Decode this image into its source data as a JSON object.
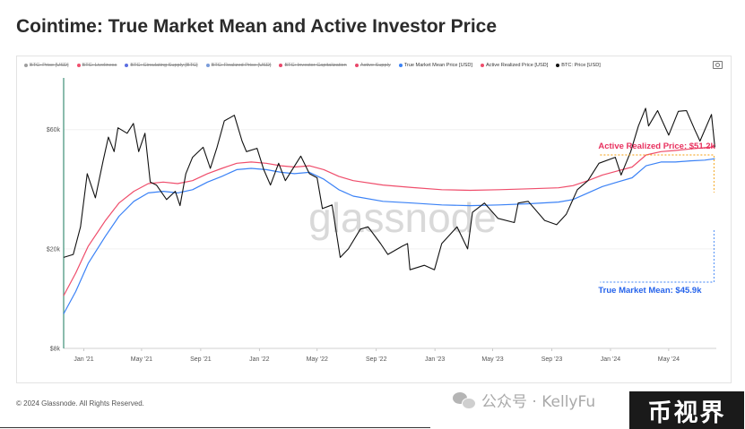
{
  "header": {
    "title": "Cointime: True Market Mean and Active Investor Price"
  },
  "legend": [
    {
      "label": "BTC: Price [USD]",
      "color": "#9e9e9e",
      "enabled": false
    },
    {
      "label": "BTC: Liveliness",
      "color": "#f0506e",
      "enabled": false
    },
    {
      "label": "BTC: Circulating Supply [BTC]",
      "color": "#5b6ee1",
      "enabled": false
    },
    {
      "label": "BTC: Realized Price [USD]",
      "color": "#7a9cd9",
      "enabled": false
    },
    {
      "label": "BTC: Investor Capitalization",
      "color": "#e8486a",
      "enabled": false
    },
    {
      "label": "Active Supply",
      "color": "#e8486a",
      "enabled": false
    },
    {
      "label": "True Market Mean Price [USD]",
      "color": "#3b82f6",
      "enabled": true
    },
    {
      "label": "Active Realized Price [USD]",
      "color": "#ef4d6b",
      "enabled": true
    },
    {
      "label": "BTC: Price [USD]",
      "color": "#111111",
      "enabled": true
    }
  ],
  "footer": {
    "copyright": "© 2024 Glassnode. All Rights Reserved."
  },
  "overlay": {
    "watermark": "glassnode",
    "wechat_text": "公众号 · KellyFu",
    "badge": "币视界"
  },
  "chart_data": {
    "type": "line",
    "title": "Cointime: True Market Mean and Active Investor Price",
    "y_scale": "log",
    "ylim": [
      8000,
      95000
    ],
    "y_ticks": [
      {
        "value": 8000,
        "label": "$8k"
      },
      {
        "value": 20000,
        "label": "$20k"
      },
      {
        "value": 60000,
        "label": "$60k"
      }
    ],
    "x_ticks": [
      "Jan '21",
      "May '21",
      "Sep '21",
      "Jan '22",
      "May '22",
      "Sep '22",
      "Jan '23",
      "May '23",
      "Sep '23",
      "Jan '24",
      "May '24"
    ],
    "x_tick_dates": [
      "2021-01-01",
      "2021-05-01",
      "2021-09-01",
      "2022-01-01",
      "2022-05-01",
      "2022-09-01",
      "2023-01-01",
      "2023-05-01",
      "2023-09-01",
      "2024-01-01",
      "2024-05-01"
    ],
    "xlim": [
      "2020-11-20",
      "2024-08-08"
    ],
    "series": [
      {
        "name": "BTC: Price [USD]",
        "color": "#111111",
        "points": [
          [
            "2020-11-20",
            18500
          ],
          [
            "2020-12-10",
            19000
          ],
          [
            "2020-12-25",
            24500
          ],
          [
            "2021-01-08",
            40000
          ],
          [
            "2021-01-25",
            32000
          ],
          [
            "2021-02-10",
            45000
          ],
          [
            "2021-02-21",
            56000
          ],
          [
            "2021-03-05",
            49000
          ],
          [
            "2021-03-13",
            61000
          ],
          [
            "2021-04-01",
            58000
          ],
          [
            "2021-04-14",
            63500
          ],
          [
            "2021-04-25",
            49000
          ],
          [
            "2021-05-08",
            58000
          ],
          [
            "2021-05-19",
            37000
          ],
          [
            "2021-06-01",
            36000
          ],
          [
            "2021-06-22",
            31500
          ],
          [
            "2021-07-10",
            34000
          ],
          [
            "2021-07-20",
            29800
          ],
          [
            "2021-08-01",
            40000
          ],
          [
            "2021-08-15",
            46500
          ],
          [
            "2021-09-06",
            51000
          ],
          [
            "2021-09-21",
            42000
          ],
          [
            "2021-10-05",
            51000
          ],
          [
            "2021-10-20",
            65000
          ],
          [
            "2021-11-10",
            68500
          ],
          [
            "2021-11-26",
            54000
          ],
          [
            "2021-12-05",
            49000
          ],
          [
            "2021-12-27",
            50500
          ],
          [
            "2022-01-10",
            41500
          ],
          [
            "2022-01-24",
            36000
          ],
          [
            "2022-02-10",
            44000
          ],
          [
            "2022-02-24",
            37500
          ],
          [
            "2022-03-28",
            47000
          ],
          [
            "2022-04-15",
            40000
          ],
          [
            "2022-05-01",
            38500
          ],
          [
            "2022-05-12",
            29000
          ],
          [
            "2022-06-01",
            30000
          ],
          [
            "2022-06-18",
            18500
          ],
          [
            "2022-07-05",
            20000
          ],
          [
            "2022-07-30",
            24000
          ],
          [
            "2022-08-15",
            24500
          ],
          [
            "2022-09-10",
            21000
          ],
          [
            "2022-09-25",
            19000
          ],
          [
            "2022-10-25",
            20500
          ],
          [
            "2022-11-05",
            21000
          ],
          [
            "2022-11-10",
            16500
          ],
          [
            "2022-12-10",
            17200
          ],
          [
            "2022-12-31",
            16500
          ],
          [
            "2023-01-15",
            21000
          ],
          [
            "2023-02-16",
            24500
          ],
          [
            "2023-03-10",
            20000
          ],
          [
            "2023-03-20",
            28000
          ],
          [
            "2023-04-14",
            30500
          ],
          [
            "2023-05-12",
            26500
          ],
          [
            "2023-06-15",
            25500
          ],
          [
            "2023-06-23",
            30500
          ],
          [
            "2023-07-14",
            31000
          ],
          [
            "2023-08-17",
            26000
          ],
          [
            "2023-09-11",
            25000
          ],
          [
            "2023-10-01",
            27500
          ],
          [
            "2023-10-24",
            34500
          ],
          [
            "2023-11-15",
            37500
          ],
          [
            "2023-12-08",
            44000
          ],
          [
            "2024-01-11",
            46500
          ],
          [
            "2024-01-23",
            39500
          ],
          [
            "2024-02-12",
            49000
          ],
          [
            "2024-02-28",
            62000
          ],
          [
            "2024-03-14",
            73000
          ],
          [
            "2024-03-20",
            62000
          ],
          [
            "2024-04-08",
            71500
          ],
          [
            "2024-05-01",
            57000
          ],
          [
            "2024-05-21",
            71000
          ],
          [
            "2024-06-07",
            71500
          ],
          [
            "2024-06-24",
            60000
          ],
          [
            "2024-07-05",
            54000
          ],
          [
            "2024-07-29",
            69000
          ],
          [
            "2024-08-05",
            51000
          ]
        ]
      },
      {
        "name": "True Market Mean Price [USD]",
        "color": "#3b82f6",
        "points": [
          [
            "2020-11-20",
            11000
          ],
          [
            "2020-12-15",
            13500
          ],
          [
            "2021-01-10",
            17500
          ],
          [
            "2021-02-15",
            22500
          ],
          [
            "2021-03-15",
            27000
          ],
          [
            "2021-04-15",
            31000
          ],
          [
            "2021-05-15",
            33500
          ],
          [
            "2021-06-15",
            34000
          ],
          [
            "2021-07-15",
            33500
          ],
          [
            "2021-08-15",
            34500
          ],
          [
            "2021-09-15",
            37000
          ],
          [
            "2021-10-15",
            39000
          ],
          [
            "2021-11-15",
            41500
          ],
          [
            "2021-12-15",
            42000
          ],
          [
            "2022-01-15",
            41500
          ],
          [
            "2022-02-15",
            40500
          ],
          [
            "2022-03-15",
            40000
          ],
          [
            "2022-04-15",
            40500
          ],
          [
            "2022-05-15",
            38000
          ],
          [
            "2022-06-15",
            34500
          ],
          [
            "2022-07-15",
            32500
          ],
          [
            "2022-09-15",
            31000
          ],
          [
            "2022-11-15",
            30500
          ],
          [
            "2023-01-15",
            30000
          ],
          [
            "2023-03-15",
            29800
          ],
          [
            "2023-05-15",
            30000
          ],
          [
            "2023-07-15",
            30300
          ],
          [
            "2023-09-15",
            30800
          ],
          [
            "2023-10-15",
            31500
          ],
          [
            "2023-11-15",
            33500
          ],
          [
            "2023-12-15",
            35500
          ],
          [
            "2024-01-15",
            37000
          ],
          [
            "2024-02-15",
            38500
          ],
          [
            "2024-03-15",
            43000
          ],
          [
            "2024-04-15",
            44500
          ],
          [
            "2024-05-15",
            44500
          ],
          [
            "2024-06-15",
            45000
          ],
          [
            "2024-07-15",
            45300
          ],
          [
            "2024-08-05",
            45900
          ]
        ]
      },
      {
        "name": "Active Realized Price [USD]",
        "color": "#ef4d6b",
        "points": [
          [
            "2020-11-20",
            13000
          ],
          [
            "2020-12-15",
            16000
          ],
          [
            "2021-01-10",
            20500
          ],
          [
            "2021-02-15",
            26000
          ],
          [
            "2021-03-15",
            30500
          ],
          [
            "2021-04-15",
            34000
          ],
          [
            "2021-05-15",
            36500
          ],
          [
            "2021-06-15",
            37000
          ],
          [
            "2021-07-15",
            36500
          ],
          [
            "2021-08-15",
            37500
          ],
          [
            "2021-09-15",
            40000
          ],
          [
            "2021-10-15",
            42000
          ],
          [
            "2021-11-15",
            44000
          ],
          [
            "2021-12-15",
            44500
          ],
          [
            "2022-01-15",
            44000
          ],
          [
            "2022-02-15",
            43000
          ],
          [
            "2022-03-15",
            42500
          ],
          [
            "2022-04-15",
            43000
          ],
          [
            "2022-05-15",
            41500
          ],
          [
            "2022-06-15",
            39000
          ],
          [
            "2022-07-15",
            37500
          ],
          [
            "2022-09-15",
            36000
          ],
          [
            "2022-11-15",
            35200
          ],
          [
            "2023-01-15",
            34500
          ],
          [
            "2023-03-15",
            34300
          ],
          [
            "2023-05-15",
            34500
          ],
          [
            "2023-07-15",
            34800
          ],
          [
            "2023-09-15",
            35100
          ],
          [
            "2023-10-15",
            35800
          ],
          [
            "2023-11-15",
            37500
          ],
          [
            "2023-12-15",
            39500
          ],
          [
            "2024-01-15",
            41000
          ],
          [
            "2024-02-15",
            42500
          ],
          [
            "2024-03-15",
            47500
          ],
          [
            "2024-04-15",
            49000
          ],
          [
            "2024-05-15",
            49500
          ],
          [
            "2024-06-15",
            50200
          ],
          [
            "2024-07-15",
            50800
          ],
          [
            "2024-08-05",
            51200
          ]
        ]
      }
    ],
    "annotations": [
      {
        "text": "Active Realized Price: $51.2k",
        "color": "#e8315f",
        "date": "2024-08-05",
        "value": 51200
      },
      {
        "text": "True Market Mean: $45.9k",
        "color": "#2563eb",
        "date": "2024-08-05",
        "value": 45900
      }
    ],
    "grid": true
  }
}
